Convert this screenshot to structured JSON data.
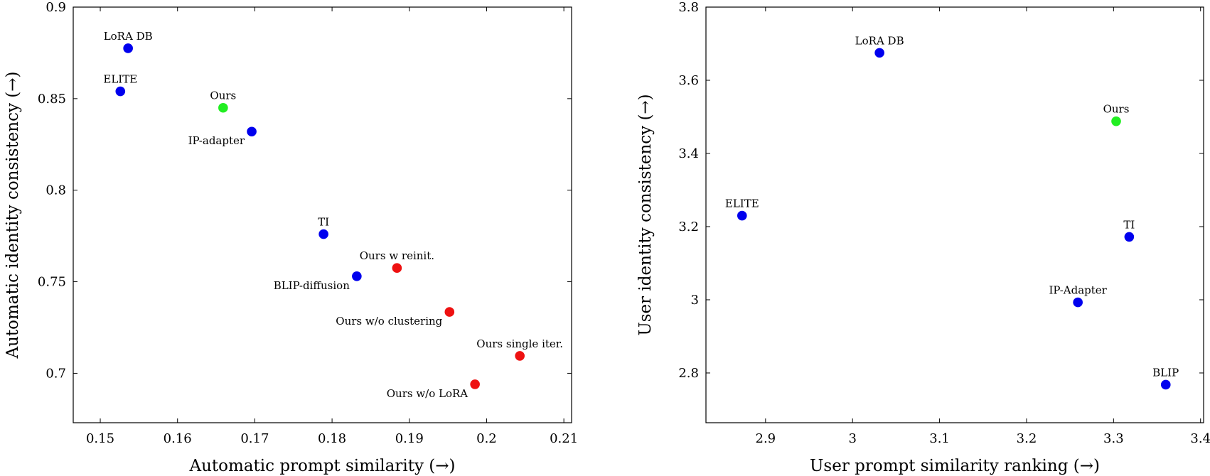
{
  "chart_data": [
    {
      "type": "scatter",
      "title": "",
      "xlabel": "Automatic prompt similarity (→)",
      "ylabel": "Automatic identity consistency (→)",
      "xlim": [
        0.1465,
        0.211
      ],
      "ylim": [
        0.673,
        0.9
      ],
      "xticks": [
        "0.15",
        "0.16",
        "0.17",
        "0.18",
        "0.19",
        "0.2",
        "0.21"
      ],
      "xtick_values": [
        0.15,
        0.16,
        0.17,
        0.18,
        0.19,
        0.2,
        0.21
      ],
      "yticks": [
        "0.7",
        "0.75",
        "0.8",
        "0.85",
        "0.9"
      ],
      "ytick_values": [
        0.7,
        0.75,
        0.8,
        0.85,
        0.9
      ],
      "grid": false,
      "points": [
        {
          "label": "LoRA DB",
          "x": 0.1536,
          "y": 0.8775,
          "color": "#0000ee",
          "label_pos": "above"
        },
        {
          "label": "ELITE",
          "x": 0.1526,
          "y": 0.854,
          "color": "#0000ee",
          "label_pos": "above"
        },
        {
          "label": "Ours",
          "x": 0.1659,
          "y": 0.845,
          "color": "#22ee22",
          "label_pos": "above"
        },
        {
          "label": "IP-adapter",
          "x": 0.1696,
          "y": 0.832,
          "color": "#0000ee",
          "label_pos": "below-left"
        },
        {
          "label": "TI",
          "x": 0.1789,
          "y": 0.776,
          "color": "#0000ee",
          "label_pos": "above"
        },
        {
          "label": "BLIP-diffusion",
          "x": 0.1832,
          "y": 0.753,
          "color": "#0000ee",
          "label_pos": "below-left"
        },
        {
          "label": "Ours w reinit.",
          "x": 0.1884,
          "y": 0.7575,
          "color": "#ee1111",
          "label_pos": "above"
        },
        {
          "label": "Ours w/o clustering",
          "x": 0.1952,
          "y": 0.7335,
          "color": "#ee1111",
          "label_pos": "below-left"
        },
        {
          "label": "Ours single iter.",
          "x": 0.2043,
          "y": 0.7095,
          "color": "#ee1111",
          "label_pos": "above"
        },
        {
          "label": "Ours w/o LoRA",
          "x": 0.1985,
          "y": 0.694,
          "color": "#ee1111",
          "label_pos": "below-left"
        }
      ]
    },
    {
      "type": "scatter",
      "title": "",
      "xlabel": "User prompt similarity ranking (→)",
      "ylabel": "User identity consistency (→)",
      "xlim": [
        2.8315,
        3.4035
      ],
      "ylim": [
        2.664,
        3.8
      ],
      "xticks": [
        "2.9",
        "3",
        "3.1",
        "3.2",
        "3.3",
        "3.4"
      ],
      "xtick_values": [
        2.9,
        3.0,
        3.1,
        3.2,
        3.3,
        3.4
      ],
      "yticks": [
        "2.8",
        "3",
        "3.2",
        "3.4",
        "3.6",
        "3.8"
      ],
      "ytick_values": [
        2.8,
        3.0,
        3.2,
        3.4,
        3.6,
        3.8
      ],
      "grid": false,
      "points": [
        {
          "label": "LoRA DB",
          "x": 3.031,
          "y": 3.675,
          "color": "#0000ee",
          "label_pos": "above"
        },
        {
          "label": "Ours",
          "x": 3.303,
          "y": 3.488,
          "color": "#22ee22",
          "label_pos": "above"
        },
        {
          "label": "ELITE",
          "x": 2.873,
          "y": 3.23,
          "color": "#0000ee",
          "label_pos": "above"
        },
        {
          "label": "TI",
          "x": 3.318,
          "y": 3.172,
          "color": "#0000ee",
          "label_pos": "above"
        },
        {
          "label": "IP-Adapter",
          "x": 3.259,
          "y": 2.993,
          "color": "#0000ee",
          "label_pos": "above"
        },
        {
          "label": "BLIP",
          "x": 3.36,
          "y": 2.768,
          "color": "#0000ee",
          "label_pos": "above"
        }
      ]
    }
  ]
}
